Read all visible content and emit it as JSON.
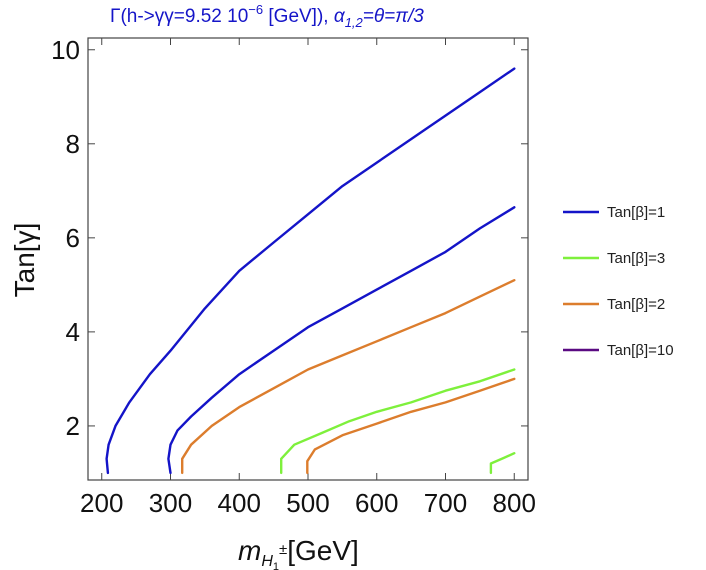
{
  "chart_data": {
    "type": "line",
    "title_parts": {
      "lead": "Γ(h->γγ=9.52 10",
      "exponent": "−6",
      "tail": " [GeV]),   ",
      "alpha": "α",
      "alpha_sub": "1,2",
      "alpha_rest": "=θ=π/3"
    },
    "xlabel_parts": {
      "m": "m",
      "sub": "H",
      "subsub": "1",
      "sup": "±",
      "rest": "[GeV]"
    },
    "ylabel": "Tan[γ]",
    "xlim": [
      180,
      820
    ],
    "ylim": [
      0.85,
      10.25
    ],
    "xticks": [
      "200",
      "300",
      "400",
      "500",
      "600",
      "700",
      "800"
    ],
    "yticks": [
      "2",
      "4",
      "6",
      "8",
      "10"
    ],
    "legend": [
      {
        "label": "Tan[β]=1",
        "color": "#1414c8"
      },
      {
        "label": "Tan[β]=3",
        "color": "#7ef03c"
      },
      {
        "label": "Tan[β]=2",
        "color": "#dc7d2d"
      },
      {
        "label": "Tan[β]=10",
        "color": "#5a0a82"
      }
    ],
    "series": [
      {
        "name": "Tan[β]=1 (upper branch)",
        "color": "#1414c8",
        "points": [
          [
            209,
            1.0
          ],
          [
            207,
            1.3
          ],
          [
            210,
            1.6
          ],
          [
            220,
            2.0
          ],
          [
            240,
            2.5
          ],
          [
            270,
            3.1
          ],
          [
            300,
            3.6
          ],
          [
            350,
            4.5
          ],
          [
            400,
            5.3
          ],
          [
            450,
            5.9
          ],
          [
            500,
            6.5
          ],
          [
            550,
            7.1
          ],
          [
            600,
            7.6
          ],
          [
            650,
            8.1
          ],
          [
            700,
            8.6
          ],
          [
            750,
            9.1
          ],
          [
            800,
            9.6
          ]
        ]
      },
      {
        "name": "Tan[β]=1 (lower branch)",
        "color": "#1414c8",
        "points": [
          [
            300,
            1.0
          ],
          [
            297,
            1.3
          ],
          [
            300,
            1.6
          ],
          [
            310,
            1.9
          ],
          [
            330,
            2.2
          ],
          [
            360,
            2.6
          ],
          [
            400,
            3.1
          ],
          [
            450,
            3.6
          ],
          [
            500,
            4.1
          ],
          [
            550,
            4.5
          ],
          [
            600,
            4.9
          ],
          [
            650,
            5.3
          ],
          [
            700,
            5.7
          ],
          [
            750,
            6.2
          ],
          [
            800,
            6.65
          ]
        ]
      },
      {
        "name": "Tan[β]=2 (upper branch)",
        "color": "#dc7d2d",
        "points": [
          [
            317,
            1.0
          ],
          [
            317,
            1.3
          ],
          [
            330,
            1.6
          ],
          [
            360,
            2.0
          ],
          [
            400,
            2.4
          ],
          [
            450,
            2.8
          ],
          [
            500,
            3.2
          ],
          [
            550,
            3.5
          ],
          [
            600,
            3.8
          ],
          [
            650,
            4.1
          ],
          [
            700,
            4.4
          ],
          [
            750,
            4.75
          ],
          [
            800,
            5.1
          ]
        ]
      },
      {
        "name": "Tan[β]=2 (lower branch)",
        "color": "#dc7d2d",
        "points": [
          [
            499,
            1.0
          ],
          [
            499,
            1.25
          ],
          [
            510,
            1.5
          ],
          [
            550,
            1.8
          ],
          [
            600,
            2.05
          ],
          [
            650,
            2.3
          ],
          [
            700,
            2.5
          ],
          [
            750,
            2.75
          ],
          [
            800,
            3.0
          ]
        ]
      },
      {
        "name": "Tan[β]=3 (upper branch)",
        "color": "#7ef03c",
        "points": [
          [
            461,
            1.0
          ],
          [
            461,
            1.3
          ],
          [
            480,
            1.6
          ],
          [
            520,
            1.85
          ],
          [
            560,
            2.1
          ],
          [
            600,
            2.3
          ],
          [
            650,
            2.5
          ],
          [
            700,
            2.75
          ],
          [
            750,
            2.95
          ],
          [
            800,
            3.2
          ]
        ]
      },
      {
        "name": "Tan[β]=3 (lower branch)",
        "color": "#7ef03c",
        "points": [
          [
            766,
            1.0
          ],
          [
            766,
            1.2
          ],
          [
            785,
            1.32
          ],
          [
            800,
            1.42
          ]
        ]
      }
    ]
  }
}
